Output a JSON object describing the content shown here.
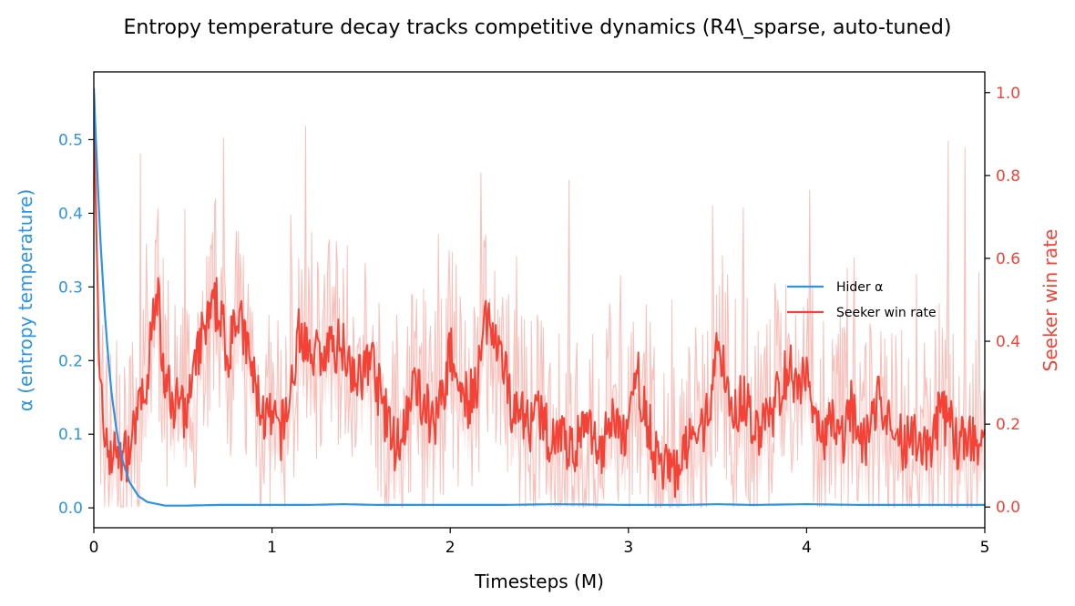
{
  "chart_data": {
    "type": "line",
    "title": "Entropy temperature decay tracks competitive dynamics (R4\\_sparse, auto-tuned)",
    "xlabel": "Timesteps (M)",
    "ylabel_left": "α (entropy temperature)",
    "ylabel_right": "Seeker win rate",
    "xlim": [
      0,
      5
    ],
    "ylim_left": [
      -0.027,
      0.592
    ],
    "ylim_right": [
      -0.05,
      1.05
    ],
    "x_ticks": [
      0,
      1,
      2,
      3,
      4,
      5
    ],
    "x_tick_labels": [
      "0",
      "1",
      "2",
      "3",
      "4",
      "5"
    ],
    "y_left_ticks": [
      0.0,
      0.1,
      0.2,
      0.3,
      0.4,
      0.5
    ],
    "y_left_tick_labels": [
      "0.0",
      "0.1",
      "0.2",
      "0.3",
      "0.4",
      "0.5"
    ],
    "y_right_ticks": [
      0.0,
      0.2,
      0.4,
      0.6,
      0.8,
      1.0
    ],
    "y_right_tick_labels": [
      "0.0",
      "0.2",
      "0.4",
      "0.6",
      "0.8",
      "1.0"
    ],
    "grid": false,
    "legend_position": "center-right",
    "colors": {
      "alpha": "#2b94e5",
      "seeker": "#f44336",
      "seeker_band": "#f8c8c4",
      "seeker_raw": "#f5a9a3"
    },
    "series": [
      {
        "name": "Hider α",
        "axis": "left",
        "x": [
          0,
          0.02,
          0.04,
          0.06,
          0.08,
          0.1,
          0.13,
          0.16,
          0.2,
          0.25,
          0.3,
          0.4,
          0.5,
          0.7,
          1.0,
          1.2,
          1.4,
          1.6,
          1.8,
          2.0,
          2.3,
          2.6,
          3.0,
          3.3,
          3.5,
          3.7,
          4.0,
          4.3,
          4.6,
          5.0
        ],
        "values": [
          0.57,
          0.45,
          0.35,
          0.27,
          0.205,
          0.155,
          0.1,
          0.065,
          0.035,
          0.016,
          0.008,
          0.003,
          0.003,
          0.004,
          0.004,
          0.004,
          0.005,
          0.004,
          0.004,
          0.004,
          0.004,
          0.005,
          0.004,
          0.004,
          0.005,
          0.004,
          0.005,
          0.004,
          0.004,
          0.004
        ]
      },
      {
        "name": "Seeker win rate",
        "axis": "right",
        "x": [
          0.0,
          0.03,
          0.06,
          0.1,
          0.15,
          0.2,
          0.25,
          0.3,
          0.35,
          0.4,
          0.45,
          0.5,
          0.55,
          0.6,
          0.65,
          0.7,
          0.75,
          0.8,
          0.85,
          0.9,
          0.95,
          1.0,
          1.05,
          1.1,
          1.15,
          1.2,
          1.25,
          1.3,
          1.35,
          1.4,
          1.45,
          1.5,
          1.55,
          1.6,
          1.65,
          1.7,
          1.75,
          1.8,
          1.85,
          1.9,
          1.95,
          2.0,
          2.05,
          2.1,
          2.15,
          2.2,
          2.25,
          2.3,
          2.35,
          2.4,
          2.45,
          2.5,
          2.55,
          2.6,
          2.65,
          2.7,
          2.75,
          2.8,
          2.85,
          2.9,
          2.95,
          3.0,
          3.05,
          3.1,
          3.15,
          3.2,
          3.25,
          3.3,
          3.35,
          3.4,
          3.45,
          3.5,
          3.55,
          3.6,
          3.65,
          3.7,
          3.75,
          3.8,
          3.85,
          3.9,
          3.95,
          4.0,
          4.05,
          4.1,
          4.15,
          4.2,
          4.25,
          4.3,
          4.35,
          4.4,
          4.45,
          4.5,
          4.55,
          4.6,
          4.65,
          4.7,
          4.75,
          4.8,
          4.85,
          4.9,
          4.95,
          5.0
        ],
        "values": [
          1.0,
          0.3,
          0.17,
          0.13,
          0.11,
          0.14,
          0.22,
          0.3,
          0.55,
          0.3,
          0.26,
          0.22,
          0.28,
          0.4,
          0.45,
          0.5,
          0.36,
          0.47,
          0.4,
          0.3,
          0.22,
          0.2,
          0.18,
          0.26,
          0.42,
          0.4,
          0.38,
          0.36,
          0.39,
          0.4,
          0.34,
          0.3,
          0.38,
          0.28,
          0.2,
          0.14,
          0.22,
          0.3,
          0.26,
          0.2,
          0.26,
          0.37,
          0.3,
          0.26,
          0.28,
          0.47,
          0.38,
          0.33,
          0.24,
          0.25,
          0.18,
          0.23,
          0.17,
          0.19,
          0.16,
          0.13,
          0.2,
          0.15,
          0.12,
          0.22,
          0.19,
          0.16,
          0.32,
          0.22,
          0.13,
          0.1,
          0.08,
          0.12,
          0.15,
          0.16,
          0.25,
          0.38,
          0.3,
          0.24,
          0.27,
          0.2,
          0.19,
          0.21,
          0.28,
          0.35,
          0.3,
          0.35,
          0.22,
          0.17,
          0.21,
          0.16,
          0.24,
          0.15,
          0.18,
          0.26,
          0.21,
          0.17,
          0.15,
          0.19,
          0.16,
          0.14,
          0.24,
          0.2,
          0.15,
          0.18,
          0.15,
          0.18
        ]
      }
    ]
  }
}
